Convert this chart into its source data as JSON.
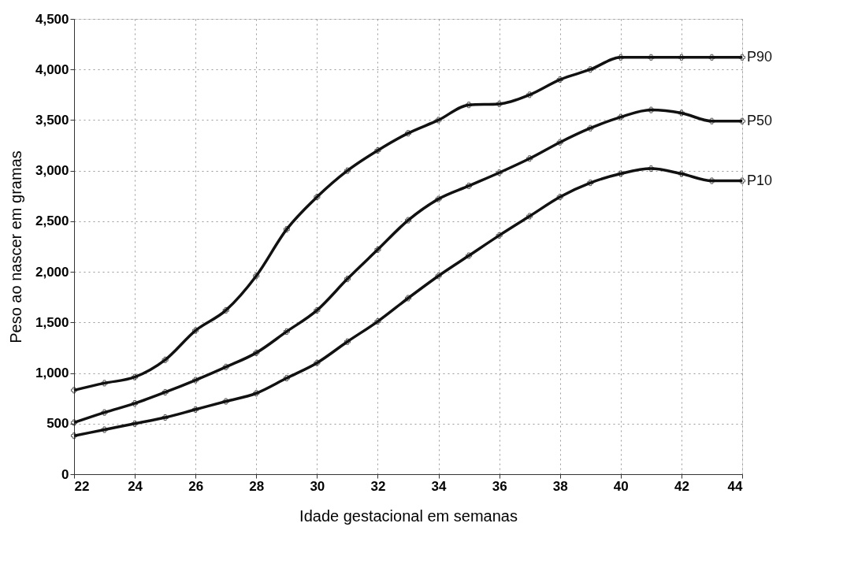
{
  "chart_data": {
    "type": "line",
    "xlabel": "Idade gestacional em semanas",
    "ylabel": "Peso ao nascer em gramas",
    "x": [
      22,
      23,
      24,
      25,
      26,
      27,
      28,
      29,
      30,
      31,
      32,
      33,
      34,
      35,
      36,
      37,
      38,
      39,
      40,
      41,
      42,
      43,
      44
    ],
    "series": [
      {
        "name": "P90",
        "color": "#111111",
        "values": [
          830,
          900,
          960,
          1130,
          1420,
          1620,
          1960,
          2420,
          2740,
          3000,
          3200,
          3370,
          3500,
          3650,
          3660,
          3750,
          3900,
          4000,
          4120,
          4120,
          4120,
          4120,
          4120
        ]
      },
      {
        "name": "P50",
        "color": "#111111",
        "values": [
          510,
          610,
          700,
          810,
          930,
          1060,
          1200,
          1410,
          1620,
          1930,
          2220,
          2510,
          2720,
          2850,
          2980,
          3120,
          3280,
          3420,
          3530,
          3600,
          3570,
          3490,
          3490
        ]
      },
      {
        "name": "P10",
        "color": "#111111",
        "values": [
          380,
          440,
          500,
          560,
          640,
          720,
          800,
          950,
          1100,
          1310,
          1510,
          1740,
          1960,
          2160,
          2360,
          2550,
          2740,
          2880,
          2970,
          3020,
          2970,
          2900,
          2900
        ]
      }
    ],
    "xlim": [
      22,
      44
    ],
    "xticks": [
      22,
      24,
      26,
      28,
      30,
      32,
      34,
      36,
      38,
      40,
      42,
      44
    ],
    "ylim": [
      0,
      4500
    ],
    "yticks": [
      {
        "value": 0,
        "label": "0"
      },
      {
        "value": 500,
        "label": "500"
      },
      {
        "value": 1000,
        "label": "1,000"
      },
      {
        "value": 1500,
        "label": "1,500"
      },
      {
        "value": 2000,
        "label": "2,000"
      },
      {
        "value": 2500,
        "label": "2,500"
      },
      {
        "value": 3000,
        "label": "3,000"
      },
      {
        "value": 3500,
        "label": "3,500"
      },
      {
        "value": 4000,
        "label": "4,000"
      },
      {
        "value": 4500,
        "label": "4,500"
      }
    ],
    "grid": true,
    "marker": "cross",
    "line_style": "solid",
    "legend": false
  }
}
